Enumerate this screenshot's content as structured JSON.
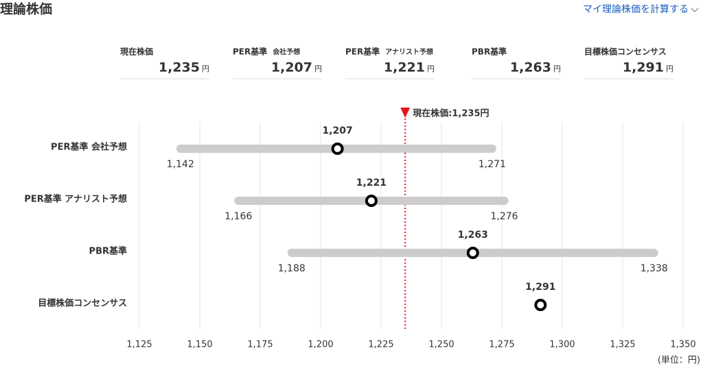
{
  "header": {
    "title": "理論株価",
    "link": "マイ理論株価を計算する"
  },
  "cards": [
    {
      "label": "現在株価",
      "sublabel": null,
      "value": "1,235",
      "unit": "円"
    },
    {
      "label": "PER基準",
      "sublabel": "会社予想",
      "value": "1,207",
      "unit": "円"
    },
    {
      "label": "PER基準",
      "sublabel": "アナリスト予想",
      "value": "1,221",
      "unit": "円"
    },
    {
      "label": "PBR基準",
      "sublabel": null,
      "value": "1,263",
      "unit": "円"
    },
    {
      "label": "目標株価コンセンサス",
      "sublabel": null,
      "value": "1,291",
      "unit": "円"
    }
  ],
  "chart_data": {
    "type": "range",
    "categories": [
      "PER基準 会社予想",
      "PER基準 アナリスト予想",
      "PBR基準",
      "目標株価コンセンサス"
    ],
    "values": [
      1207,
      1221,
      1263,
      1291
    ],
    "value_labels": [
      "1,207",
      "1,221",
      "1,263",
      "1,291"
    ],
    "low": [
      1142,
      1166,
      1188,
      null
    ],
    "low_labels": [
      "1,142",
      "1,166",
      "1,188",
      null
    ],
    "high": [
      1271,
      1276,
      1338,
      null
    ],
    "high_labels": [
      "1,271",
      "1,276",
      "1,338",
      null
    ],
    "bar_color": "#cccccc",
    "reference": {
      "value": 1235,
      "label": "現在株価:1,235円",
      "color": "#e8141c"
    },
    "xlim": [
      1125,
      1350
    ],
    "xticks": [
      {
        "value": 1125,
        "label": "1,125"
      },
      {
        "value": 1150,
        "label": "1,150"
      },
      {
        "value": 1175,
        "label": "1,175"
      },
      {
        "value": 1200,
        "label": "1,200"
      },
      {
        "value": 1225,
        "label": "1,225"
      },
      {
        "value": 1250,
        "label": "1,250"
      },
      {
        "value": 1275,
        "label": "1,275"
      },
      {
        "value": 1300,
        "label": "1,300"
      },
      {
        "value": 1325,
        "label": "1,325"
      },
      {
        "value": 1350,
        "label": "1,350"
      }
    ],
    "grid": true,
    "unit_note": "(単位：円)"
  }
}
